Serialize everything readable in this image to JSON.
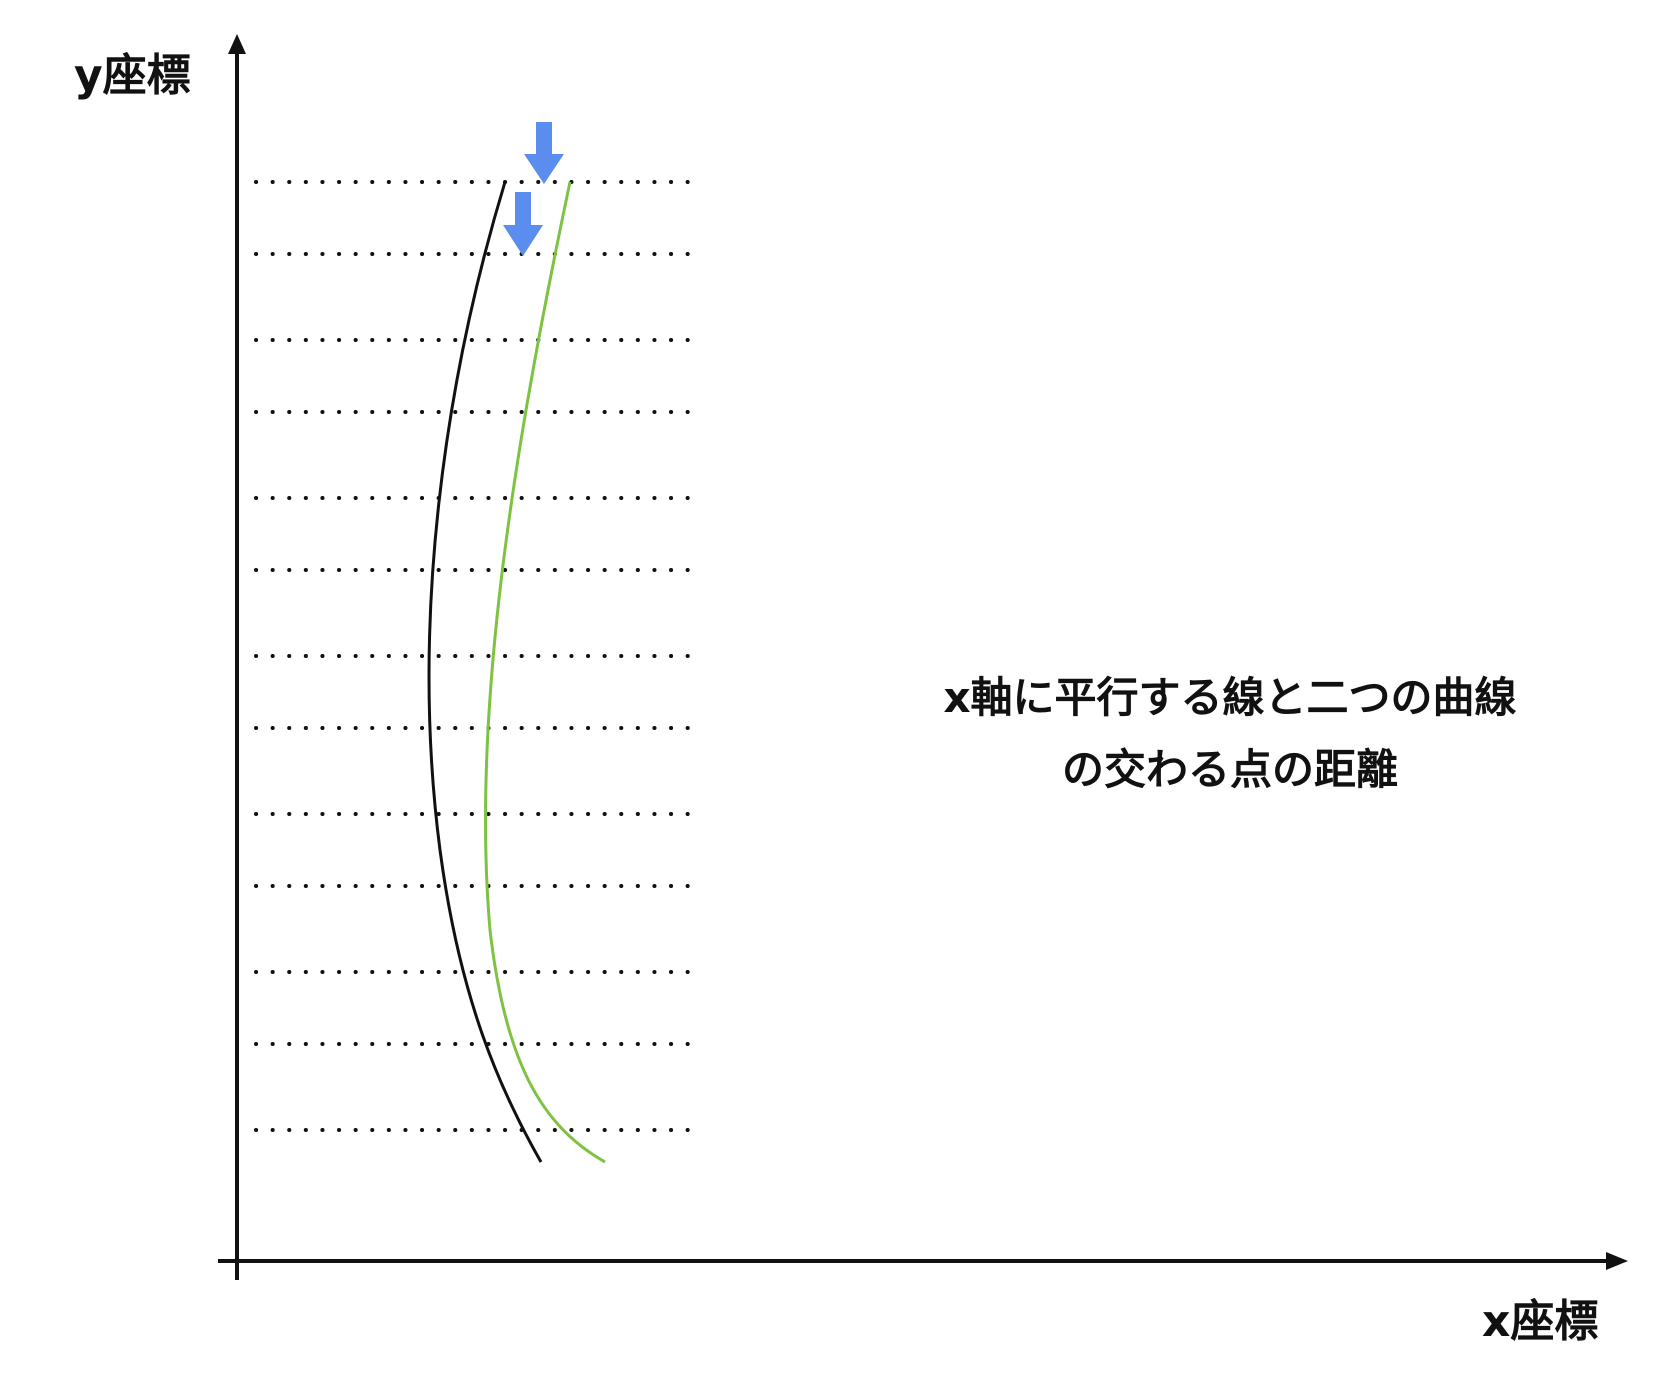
{
  "diagram": {
    "y_axis_label": "y座標",
    "x_axis_label": "x座標",
    "caption_line1": "x軸に平行する線と二つの曲線",
    "caption_line2": "の交わる点の距離",
    "colors": {
      "axis": "#111111",
      "curve_black": "#111111",
      "curve_green": "#7dc242",
      "arrows": "#5b8def",
      "dotted_lines": "#111111"
    },
    "horizontal_dotted_line_count": 13,
    "curves": [
      {
        "name": "black-curve",
        "color": "black"
      },
      {
        "name": "green-curve",
        "color": "green"
      }
    ],
    "arrows": [
      {
        "name": "arrow-on-green-curve",
        "direction": "down"
      },
      {
        "name": "arrow-on-black-curve",
        "direction": "down"
      }
    ]
  }
}
